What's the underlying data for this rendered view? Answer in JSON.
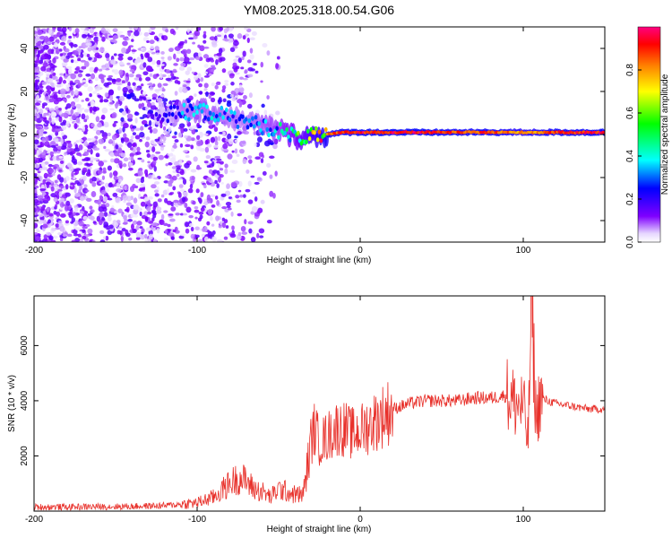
{
  "title": "YM08.2025.318.00.54.G06",
  "chart_data": [
    {
      "type": "heatmap",
      "xlabel": "Height of straight line (km)",
      "ylabel": "Frequency (Hz)",
      "xlim": [
        -200,
        150
      ],
      "ylim": [
        -50,
        50
      ],
      "xticks": [
        -200,
        -100,
        0,
        100
      ],
      "yticks": [
        -40,
        -20,
        0,
        20,
        40
      ],
      "ridge": {
        "x": [
          -120,
          -110,
          -100,
          -90,
          -80,
          -70,
          -60,
          -50,
          -40,
          -30,
          -20,
          -10,
          0,
          20,
          40,
          60,
          80,
          90,
          100,
          110,
          120,
          150
        ],
        "frequency": [
          9,
          10,
          11,
          10,
          8,
          6,
          4,
          2,
          -1,
          -1,
          0,
          1,
          1,
          1,
          1,
          1,
          1,
          1,
          1,
          1,
          1,
          1
        ],
        "amplitude": [
          0.2,
          0.3,
          0.35,
          0.35,
          0.3,
          0.3,
          0.35,
          0.4,
          0.5,
          0.7,
          0.9,
          0.95,
          1.0,
          1.0,
          1.0,
          0.95,
          0.95,
          0.9,
          0.85,
          0.9,
          0.95,
          1.0
        ]
      },
      "colorbar": {
        "label": "Normalized spectral amplitude",
        "range": [
          0,
          1
        ],
        "ticks": [
          "0.0",
          "0.2",
          "0.4",
          "0.6",
          "0.8"
        ],
        "colormap": [
          "#ffffff",
          "#7f00ff",
          "#0000ff",
          "#00ffff",
          "#00ff00",
          "#ffff00",
          "#ff8000",
          "#ff0000",
          "#ff0080"
        ]
      }
    },
    {
      "type": "line",
      "xlabel": "Height of straight line (km)",
      "ylabel": "SNR (10 * v/v)",
      "xlim": [
        -200,
        150
      ],
      "ylim": [
        0,
        7800
      ],
      "xticks": [
        -200,
        -100,
        0,
        100
      ],
      "yticks": [
        2000,
        4000,
        6000
      ],
      "color": "#e8302a",
      "series": [
        {
          "name": "SNR",
          "x": [
            -200,
            -180,
            -160,
            -140,
            -120,
            -100,
            -90,
            -80,
            -75,
            -70,
            -65,
            -60,
            -55,
            -50,
            -45,
            -40,
            -35,
            -30,
            -28,
            -25,
            -20,
            -15,
            -10,
            -5,
            0,
            10,
            20,
            30,
            40,
            50,
            60,
            70,
            80,
            90,
            95,
            100,
            103,
            105,
            108,
            110,
            120,
            130,
            140,
            150
          ],
          "values": [
            150,
            150,
            160,
            170,
            200,
            300,
            500,
            1000,
            1200,
            1100,
            800,
            700,
            500,
            800,
            700,
            600,
            600,
            2500,
            3000,
            2500,
            2700,
            3000,
            3000,
            2800,
            2900,
            3300,
            3700,
            3900,
            4000,
            4000,
            4000,
            4100,
            4100,
            4200,
            3900,
            3800,
            2500,
            7600,
            3200,
            4100,
            3900,
            3800,
            3700,
            3700
          ]
        }
      ]
    }
  ]
}
